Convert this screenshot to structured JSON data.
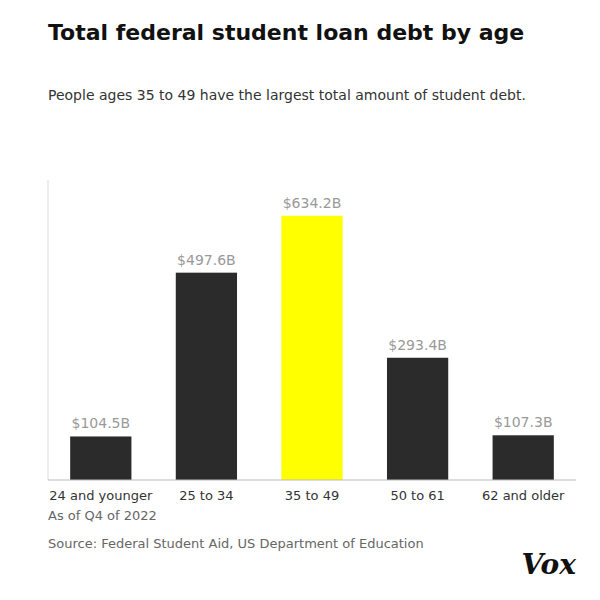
{
  "chart_data": {
    "type": "bar",
    "title": "Total federal student loan debt by age",
    "subtitle": "People ages 35 to 49 have the largest total amount of student debt.",
    "categories": [
      "24 and younger",
      "25 to 34",
      "35 to 49",
      "50 to 61",
      "62 and older"
    ],
    "values": [
      104.5,
      497.6,
      634.2,
      293.4,
      107.3
    ],
    "value_labels": [
      "$104.5B",
      "$497.6B",
      "$634.2B",
      "$293.4B",
      "$107.3B"
    ],
    "data_labels": true,
    "colors": [
      "#2b2b2b",
      "#2b2b2b",
      "#ffff00",
      "#2b2b2b",
      "#2b2b2b"
    ],
    "ylim": [
      0,
      720
    ],
    "grid": false,
    "tick_labels": "x",
    "annotations": [
      "As of Q4 of 2022",
      "Source: Federal Student Aid, US Department of Education",
      "Vox"
    ]
  }
}
